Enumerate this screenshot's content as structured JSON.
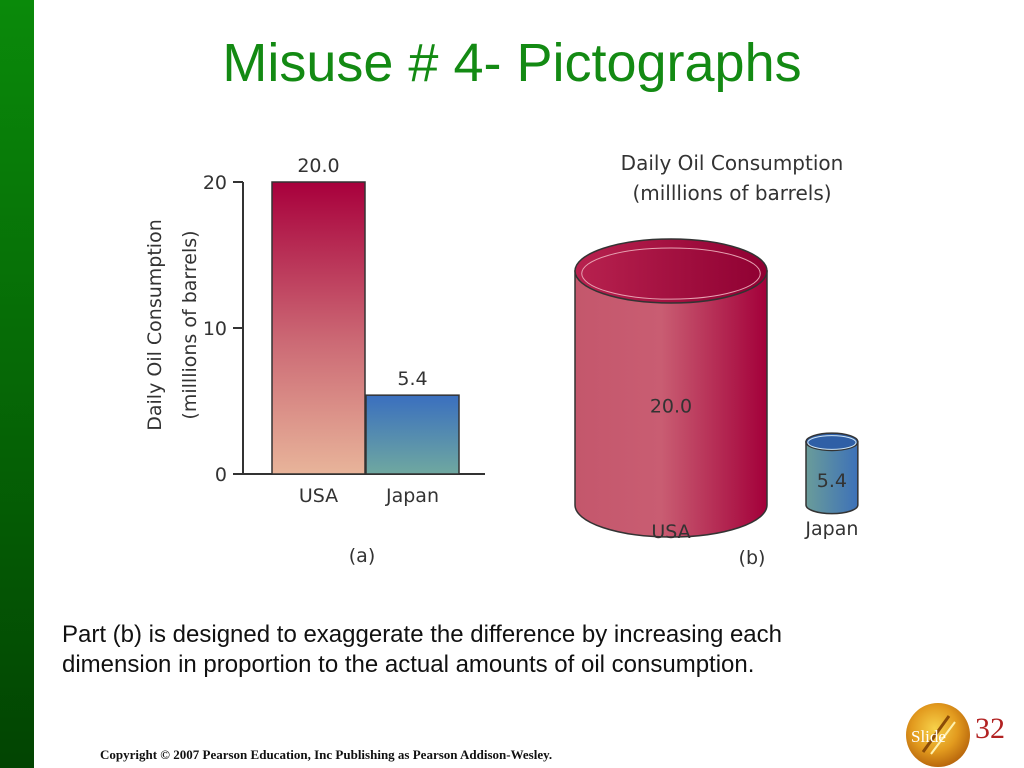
{
  "slide": {
    "title": "Misuse # 4- Pictographs",
    "caption_line1": "Part (b) is designed to exaggerate the difference by increasing each",
    "caption_line2": "dimension in proportion to the actual amounts of oil consumption.",
    "copyright": "Copyright © 2007 Pearson Education, Inc Publishing as Pearson Addison-Wesley.",
    "badge_word": "Slide",
    "slide_number": "32"
  },
  "colors": {
    "title_green": "#138a13",
    "sidebar_green": "#066b06",
    "usa_dark": "#a8003c",
    "usa_light": "#e8b49a",
    "japan_dark": "#3a6fbf",
    "japan_light": "#6fa8a0",
    "slide_number_red": "#b22222"
  },
  "chart_data": [
    {
      "type": "bar",
      "panel_label": "(a)",
      "ylabel_line1": "Daily Oil Consumption",
      "ylabel_line2": "(milllions of barrels)",
      "categories": [
        "USA",
        "Japan"
      ],
      "values": [
        20.0,
        5.4
      ],
      "value_labels": [
        "20.0",
        "5.4"
      ],
      "yticks": [
        0,
        10,
        20
      ],
      "ytick_labels": [
        "0",
        "10",
        "20"
      ],
      "ylim": [
        0,
        20
      ]
    },
    {
      "type": "pictograph",
      "panel_label": "(b)",
      "title_line1": "Daily Oil Consumption",
      "title_line2": "(milllions of barrels)",
      "categories": [
        "USA",
        "Japan"
      ],
      "values": [
        20.0,
        5.4
      ],
      "value_labels": [
        "20.0",
        "5.4"
      ]
    }
  ]
}
